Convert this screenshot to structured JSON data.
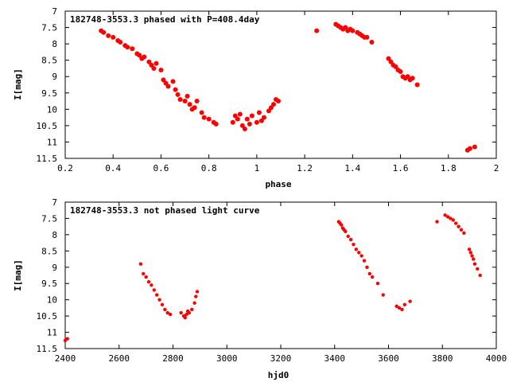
{
  "chart_data": [
    {
      "type": "scatter",
      "title": "182748-3553.3 phased with P=408.4day",
      "xlabel": "phase",
      "ylabel": "I[mag]",
      "xlim": [
        0.2,
        2.0
      ],
      "ylim": [
        7,
        11.5
      ],
      "y_inverted": true,
      "grid": false,
      "x_ticks": [
        "0.2",
        "0.4",
        "0.6",
        "0.8",
        "1",
        "1.2",
        "1.4",
        "1.6",
        "1.8",
        "2"
      ],
      "y_ticks": [
        "7",
        "7.5",
        "8",
        "8.5",
        "9",
        "9.5",
        "10",
        "10.5",
        "11",
        "11.5"
      ],
      "marker_color": "#ff0000",
      "series": [
        {
          "x": [
            0.35,
            0.36,
            0.38,
            0.4,
            0.42,
            0.43,
            0.45,
            0.46,
            0.48,
            0.5,
            0.51,
            0.52,
            0.53,
            0.55,
            0.56,
            0.57,
            0.58,
            0.6,
            0.61,
            0.62,
            0.63,
            0.65,
            0.66,
            0.67,
            0.68,
            0.7,
            0.71,
            0.72,
            0.73,
            0.74,
            0.75,
            0.77,
            0.78,
            0.8,
            0.82,
            0.83,
            0.9,
            0.91,
            0.92,
            0.93,
            0.94,
            0.95,
            0.96,
            0.97,
            0.98,
            1.0,
            1.01,
            1.02,
            1.03,
            1.05,
            1.06,
            1.07,
            1.08,
            1.09,
            1.25,
            1.33,
            1.34,
            1.35,
            1.36,
            1.37,
            1.38,
            1.39,
            1.4,
            1.42,
            1.43,
            1.44,
            1.45,
            1.46,
            1.48,
            1.55,
            1.56,
            1.57,
            1.58,
            1.59,
            1.6,
            1.61,
            1.62,
            1.63,
            1.64,
            1.65,
            1.67,
            1.88,
            1.89,
            1.91
          ],
          "y": [
            7.6,
            7.65,
            7.75,
            7.8,
            7.9,
            7.95,
            8.05,
            8.1,
            8.15,
            8.3,
            8.35,
            8.45,
            8.4,
            8.55,
            8.65,
            8.75,
            8.6,
            8.8,
            9.1,
            9.2,
            9.3,
            9.15,
            9.4,
            9.55,
            9.7,
            9.75,
            9.6,
            9.85,
            10.0,
            9.95,
            9.75,
            10.1,
            10.25,
            10.3,
            10.4,
            10.45,
            10.4,
            10.2,
            10.3,
            10.15,
            10.5,
            10.6,
            10.3,
            10.45,
            10.2,
            10.4,
            10.1,
            10.35,
            10.25,
            10.05,
            9.95,
            9.85,
            9.7,
            9.75,
            7.6,
            7.4,
            7.45,
            7.5,
            7.55,
            7.5,
            7.6,
            7.55,
            7.6,
            7.65,
            7.7,
            7.75,
            7.8,
            7.8,
            7.95,
            8.45,
            8.55,
            8.65,
            8.7,
            8.8,
            8.85,
            9.0,
            9.05,
            9.0,
            9.1,
            9.05,
            9.25,
            11.25,
            11.2,
            11.15
          ]
        }
      ]
    },
    {
      "type": "scatter",
      "title": "182748-3553.3 not phased light curve",
      "xlabel": "hjd0",
      "ylabel": "I[mag]",
      "xlim": [
        2400,
        4000
      ],
      "ylim": [
        7,
        11.5
      ],
      "y_inverted": true,
      "grid": false,
      "x_ticks": [
        "2400",
        "2600",
        "2800",
        "3000",
        "3200",
        "3400",
        "3600",
        "3800",
        "4000"
      ],
      "y_ticks": [
        "7",
        "7.5",
        "8",
        "8.5",
        "9",
        "9.5",
        "10",
        "10.5",
        "11",
        "11.5"
      ],
      "marker_color": "#ff0000",
      "series": [
        {
          "x": [
            2400,
            2408,
            2680,
            2690,
            2700,
            2710,
            2720,
            2730,
            2740,
            2750,
            2760,
            2770,
            2780,
            2790,
            2830,
            2840,
            2845,
            2850,
            2855,
            2860,
            2870,
            2880,
            2885,
            2890,
            3415,
            3420,
            3425,
            3430,
            3435,
            3440,
            3450,
            3460,
            3470,
            3480,
            3490,
            3500,
            3510,
            3520,
            3530,
            3540,
            3560,
            3580,
            3630,
            3640,
            3650,
            3660,
            3680,
            3780,
            3810,
            3820,
            3830,
            3840,
            3850,
            3860,
            3870,
            3880,
            3900,
            3905,
            3910,
            3915,
            3920,
            3930,
            3940
          ],
          "y": [
            11.25,
            11.2,
            8.9,
            9.2,
            9.3,
            9.45,
            9.55,
            9.7,
            9.85,
            10.0,
            10.15,
            10.3,
            10.4,
            10.45,
            10.4,
            10.5,
            10.55,
            10.45,
            10.35,
            10.4,
            10.3,
            10.1,
            9.9,
            9.75,
            7.6,
            7.65,
            7.7,
            7.8,
            7.85,
            7.9,
            8.05,
            8.15,
            8.3,
            8.45,
            8.55,
            8.65,
            8.8,
            9.0,
            9.2,
            9.3,
            9.5,
            9.85,
            10.2,
            10.25,
            10.3,
            10.15,
            10.05,
            7.6,
            7.4,
            7.45,
            7.5,
            7.55,
            7.65,
            7.75,
            7.85,
            7.95,
            8.45,
            8.55,
            8.65,
            8.75,
            8.9,
            9.05,
            9.25
          ]
        }
      ]
    }
  ]
}
